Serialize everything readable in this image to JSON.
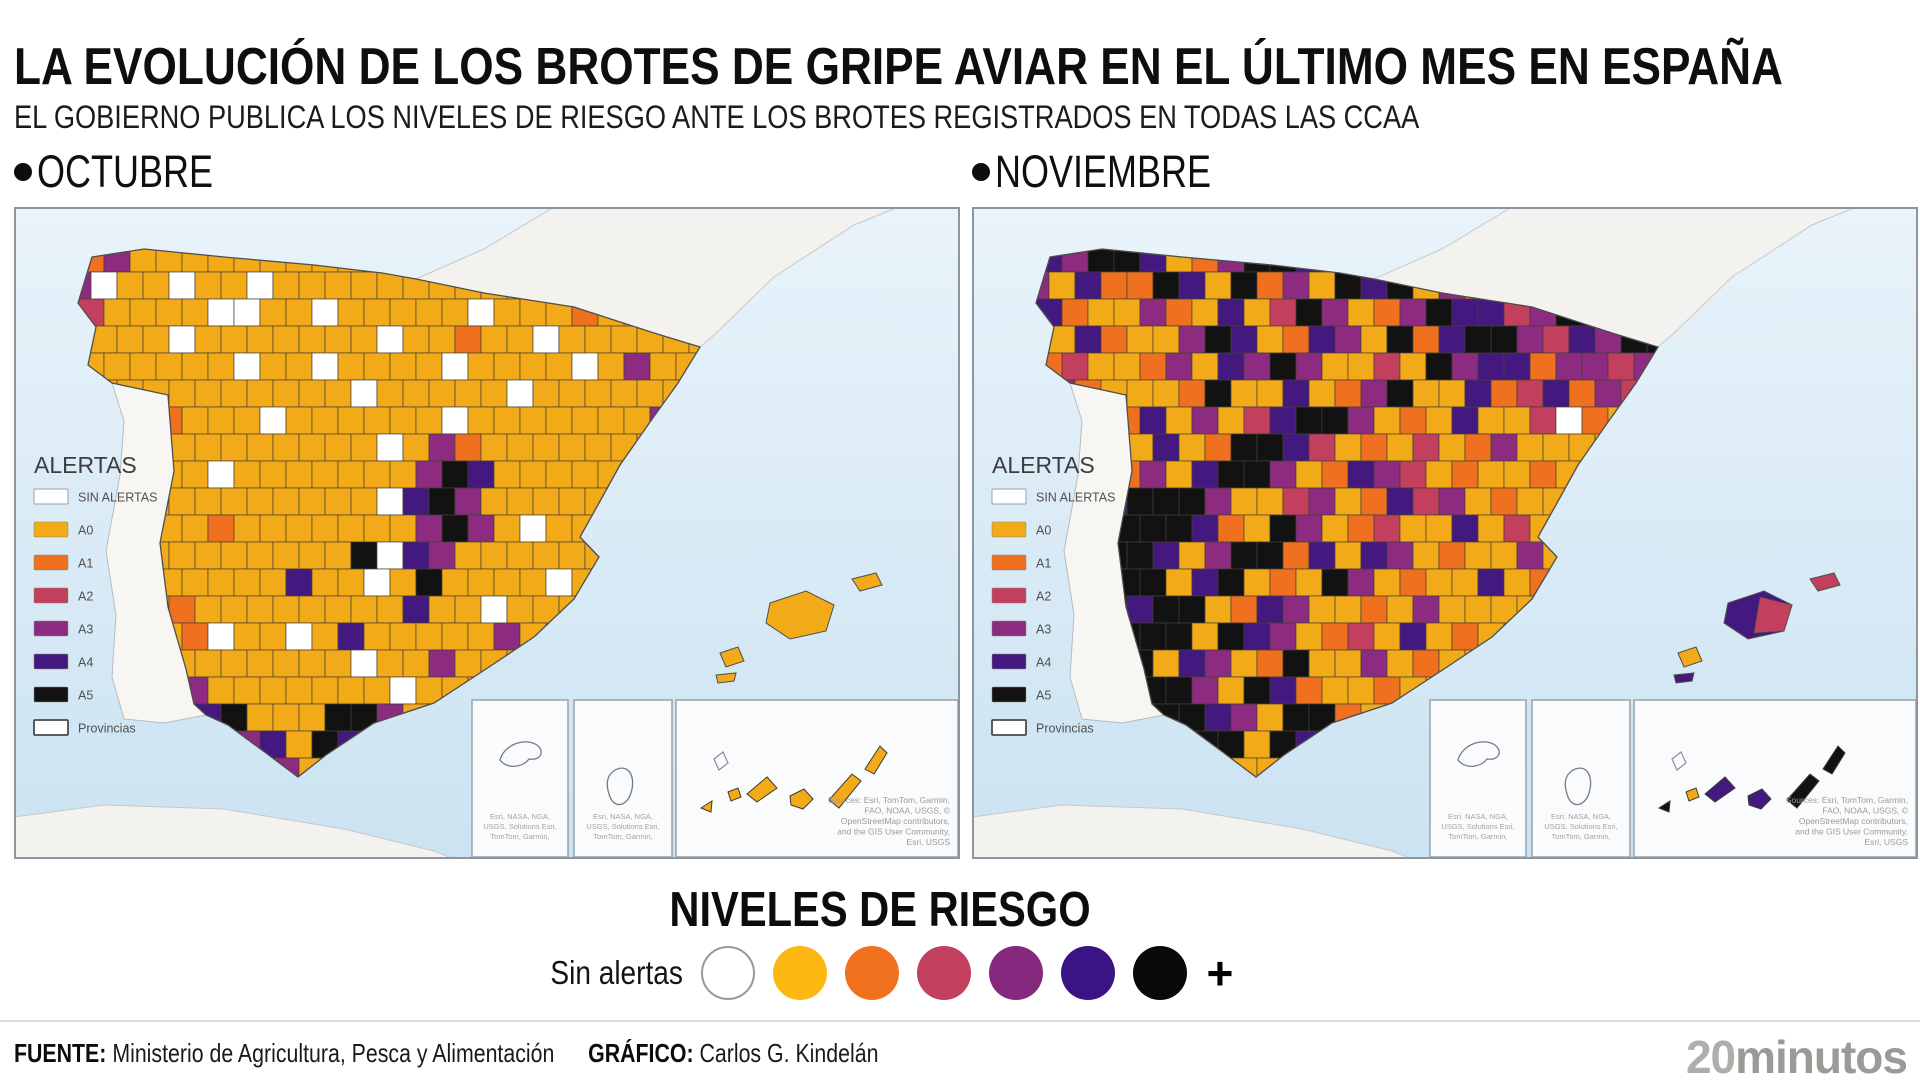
{
  "header": {
    "title": "LA EVOLUCIÓN DE LOS BROTES DE GRIPE AVIAR EN EL ÚLTIMO MES EN ESPAÑA",
    "subtitle": "EL GOBIERNO PUBLICA LOS NIVELES DE RIESGO ANTE LOS BROTES REGISTRADOS EN TODAS LAS CCAA"
  },
  "maps": {
    "legend_title": "ALERTAS",
    "levels": [
      {
        "key": "W",
        "label": "SIN ALERTAS",
        "color": "#FFFFFF"
      },
      {
        "key": "0",
        "label": "A0",
        "color": "#F3AA18"
      },
      {
        "key": "1",
        "label": "A1",
        "color": "#EF7120"
      },
      {
        "key": "2",
        "label": "A2",
        "color": "#C23F5E"
      },
      {
        "key": "3",
        "label": "A3",
        "color": "#8C2B80"
      },
      {
        "key": "4",
        "label": "A4",
        "color": "#44197F"
      },
      {
        "key": "5",
        "label": "A5",
        "color": "#121212"
      },
      {
        "key": "P",
        "label": "Provincias",
        "color": "#FFFFFF"
      }
    ],
    "sea_top": "#E9F3FA",
    "sea_bottom": "#CBE3F2",
    "land": "#F3F2EF",
    "land_border": "#C5C9CC",
    "province_border": "#443F34",
    "coast": "#4E4E4E",
    "attribution_main": [
      "Sources: Esri, TomTom, Garmin,",
      "FAO, NOAA, USGS, ©",
      "OpenStreetMap contributors,",
      "and the GIS User Community,",
      "Esri, USGS"
    ],
    "attribution_small": [
      "Esri, NASA, NGA,",
      "USGS, Solutions Esri,",
      "TomTom, Garmin,"
    ],
    "october": {
      "label": "OCTUBRE",
      "grid": [
        "130000000000010000000000",
        "3W00W00W000000000000W000",
        "20000WW00W00000W00010000",
        "2000W0000000W00100W00000",
        "000000W00W0000W0000W0300",
        "00000000000W00000W000000",
        "0001000W000000W000000030",
        "000000000000W03100000000",
        "00000W000000035400000000",
        "000000000000W45300000000",
        "00000100000003530W000000",
        "000000000005W43000000000",
        "00000000400W050000W00000",
        "0000100000000400W0000000",
        "00001W00W04000003000W000",
        "00000000000W003000000000",
        "000W30000000W00000000000",
        "00035450005530W000000000",
        "00555334054450300000000W",
        "000554453000430000000000",
        "000005544000030000000000"
      ],
      "balearics": {
        "mallorca": "0",
        "mallorca_patch": null,
        "menorca": "0",
        "ibiza": "0",
        "formentera": "0"
      },
      "canary": [
        "N",
        "0",
        "0",
        "0",
        "0",
        "0",
        "0"
      ]
    },
    "november": {
      "label": "NOVIEMBRE",
      "grid": [
        "435540135545104553054400",
        "304115405130545031354400",
        "410031040253013544235545",
        "204100354014305145532435",
        "120013043530020534413323",
        "031000150040135004124132",
        "30014030245530104002W100",
        "013004015542010201300004",
        "105130455301432010010040",
        "030455530023014230100300",
        "004555410530120040201000",
        "055554035514043010030000",
        "355550450105301004010000",
        "555545501430010300004000",
        "055555054301204010030000",
        "555550430150030100300000",
        "055555305410010030000000",
        "005555543055104300000000",
        "005555550545530000000000",
        "000555450004400000000000",
        "000055550000400000000000"
      ],
      "balearics": {
        "mallorca": "4",
        "mallorca_patch": "2",
        "menorca": "2",
        "ibiza": "0",
        "formentera": "4"
      },
      "canary": [
        "N",
        "5",
        "0",
        "4",
        "4",
        "5",
        "5"
      ]
    }
  },
  "risk_scale": {
    "title": "NIVELES DE RIESGO",
    "no_alert_label": "Sin alertas",
    "plus": "+",
    "circles": [
      {
        "name": "sin-alertas",
        "color": "#FFFFFF"
      },
      {
        "name": "a0",
        "color": "#FCB712"
      },
      {
        "name": "a1",
        "color": "#F2711E"
      },
      {
        "name": "a2",
        "color": "#C23F5E"
      },
      {
        "name": "a3",
        "color": "#85287E"
      },
      {
        "name": "a4",
        "color": "#3A1484"
      },
      {
        "name": "a5",
        "color": "#0A0A0A"
      }
    ]
  },
  "footer": {
    "source_label": "FUENTE:",
    "source": "Ministerio de Agricultura, Pesca y Alimentación",
    "credit_label": "GRÁFICO:",
    "credit": "Carlos G. Kindelán",
    "brand_20": "20",
    "brand_rest": "minutos"
  }
}
